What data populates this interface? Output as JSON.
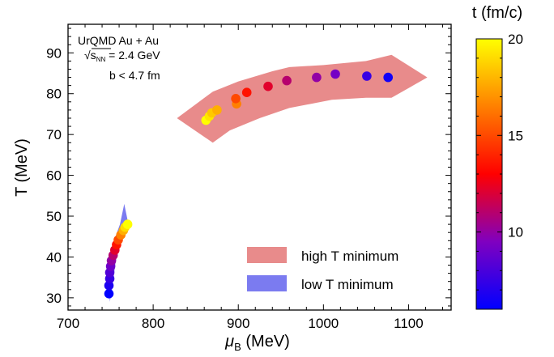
{
  "chart_data": {
    "type": "scatter",
    "xlabel_main": "μ",
    "xlabel_sub": "B",
    "xlabel_unit": " (MeV)",
    "ylabel": "T (MeV)",
    "xlim": [
      700,
      1150
    ],
    "ylim": [
      27,
      97
    ],
    "xticks": [
      700,
      800,
      900,
      1000,
      1100
    ],
    "yticks": [
      30,
      40,
      50,
      60,
      70,
      80,
      90
    ],
    "annotation": {
      "line1": "UrQMD Au + Au",
      "sqrt_s": "√s",
      "sqrt_s_sub": "NN",
      "line2_rest": " = 2.4 GeV",
      "line3": "b < 4.7 fm"
    },
    "colorbar": {
      "label": "t (fm/c)",
      "range": [
        6,
        20
      ],
      "ticks": [
        10,
        15,
        20
      ],
      "colors": [
        "#0000ff",
        "#8000c0",
        "#ff0000",
        "#ff8000",
        "#ffff00"
      ]
    },
    "legend": {
      "position": "lower-right",
      "entries": [
        {
          "label": "high T minimum",
          "color": "#e88b8b"
        },
        {
          "label": "low T minimum",
          "color": "#7b7bf0"
        }
      ]
    },
    "bands": [
      {
        "name": "high T minimum",
        "color": "#e88b8b",
        "polygon": [
          [
            828,
            74
          ],
          [
            870,
            80.5
          ],
          [
            900,
            83
          ],
          [
            940,
            85.5
          ],
          [
            960,
            86.5
          ],
          [
            1000,
            87
          ],
          [
            1050,
            88
          ],
          [
            1080,
            89.5
          ],
          [
            1122,
            84
          ],
          [
            1080,
            79
          ],
          [
            1050,
            79
          ],
          [
            1010,
            78.5
          ],
          [
            960,
            76.5
          ],
          [
            925,
            74
          ],
          [
            890,
            71
          ],
          [
            870,
            68
          ]
        ]
      },
      {
        "name": "low T minimum",
        "color": "#7b7bf0",
        "polygon": [
          [
            766,
            53
          ],
          [
            771,
            48
          ],
          [
            765,
            46
          ],
          [
            756,
            39
          ],
          [
            751,
            31
          ],
          [
            749,
            29
          ],
          [
            749,
            32
          ],
          [
            748,
            40
          ],
          [
            754,
            44
          ],
          [
            761,
            48
          ]
        ]
      }
    ],
    "series": [
      {
        "points": [
          {
            "x": 862,
            "y": 73.5,
            "t": 20
          },
          {
            "x": 866,
            "y": 74.5,
            "t": 19.3
          },
          {
            "x": 869,
            "y": 75.3,
            "t": 18.5
          },
          {
            "x": 875,
            "y": 76,
            "t": 17.8
          },
          {
            "x": 898,
            "y": 77.5,
            "t": 16.5
          },
          {
            "x": 897,
            "y": 78.8,
            "t": 15
          },
          {
            "x": 910,
            "y": 80.3,
            "t": 13.5
          },
          {
            "x": 935,
            "y": 81.8,
            "t": 12.2
          },
          {
            "x": 957,
            "y": 83.2,
            "t": 11
          },
          {
            "x": 992,
            "y": 84,
            "t": 10
          },
          {
            "x": 1014,
            "y": 84.8,
            "t": 9.2
          },
          {
            "x": 1051,
            "y": 84.3,
            "t": 7.5
          },
          {
            "x": 1076,
            "y": 84,
            "t": 6.5
          },
          {
            "x": 748,
            "y": 31,
            "t": 6
          },
          {
            "x": 748,
            "y": 33,
            "t": 6.8
          },
          {
            "x": 749,
            "y": 34.7,
            "t": 7.5
          },
          {
            "x": 749,
            "y": 36.2,
            "t": 8.2
          },
          {
            "x": 750,
            "y": 37.7,
            "t": 9
          },
          {
            "x": 751,
            "y": 39.1,
            "t": 10
          },
          {
            "x": 753,
            "y": 40.4,
            "t": 11
          },
          {
            "x": 755,
            "y": 41.7,
            "t": 12.2
          },
          {
            "x": 757,
            "y": 43,
            "t": 13.5
          },
          {
            "x": 759,
            "y": 44.2,
            "t": 15
          },
          {
            "x": 762,
            "y": 45.4,
            "t": 16.5
          },
          {
            "x": 765,
            "y": 46.5,
            "t": 17.8
          },
          {
            "x": 767,
            "y": 47.3,
            "t": 19
          },
          {
            "x": 770,
            "y": 48,
            "t": 20
          }
        ]
      }
    ]
  }
}
